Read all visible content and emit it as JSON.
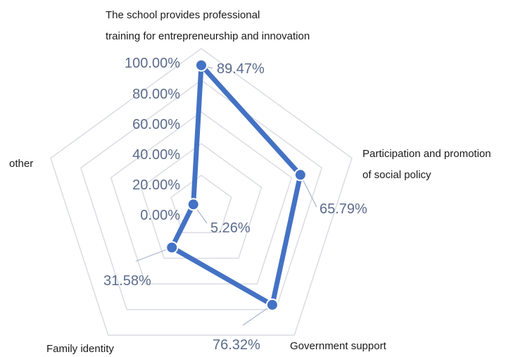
{
  "chart_data": {
    "type": "radar",
    "categories": [
      "The school provides professional training for entrepreneurship and innovation",
      "Participation and promotion of social policy",
      "Government support",
      "Family identity",
      "other"
    ],
    "category_label_lines": [
      [
        "The school provides professional",
        "training for entrepreneurship and innovation"
      ],
      [
        "Participation and promotion",
        "of social policy"
      ],
      [
        "Government support"
      ],
      [
        "Family identity"
      ],
      [
        "other"
      ]
    ],
    "values": [
      89.47,
      65.79,
      76.32,
      31.58,
      5.26
    ],
    "data_labels": [
      "89.47%",
      "65.79%",
      "76.32%",
      "31.58%",
      "5.26%"
    ],
    "axis_ticks": [
      "100.00%",
      "80.00%",
      "60.00%",
      "40.00%",
      "20.00%",
      "0.00%"
    ],
    "rlim": [
      0,
      100
    ],
    "grid": true,
    "legend": "none",
    "colors": {
      "series": "#4472c4",
      "grid": "#d9dce3",
      "tick_text": "#5b6b8c",
      "leader": "#a6b4cc"
    }
  }
}
